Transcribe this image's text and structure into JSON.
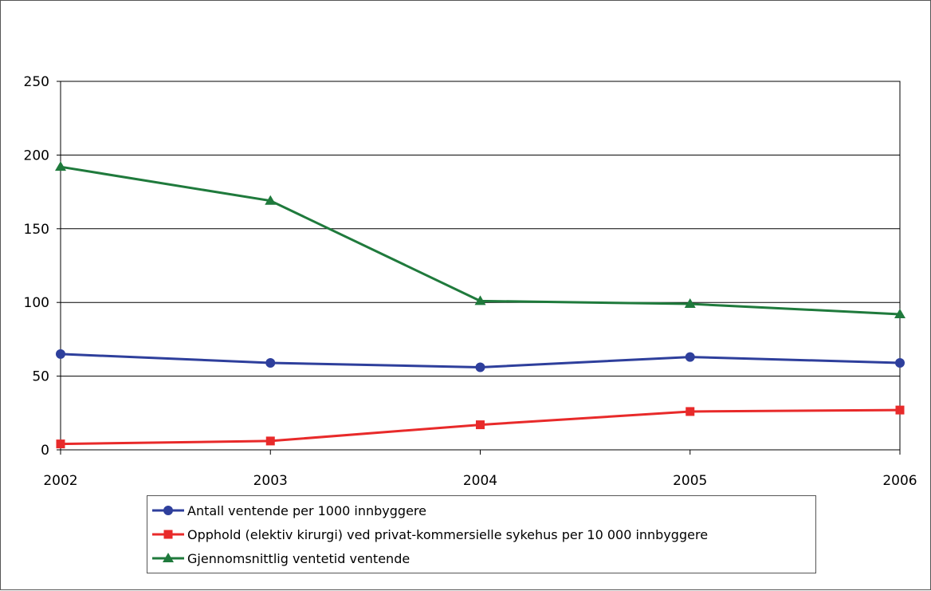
{
  "chart_data": {
    "type": "line",
    "x": [
      "2002",
      "2003",
      "2004",
      "2005",
      "2006"
    ],
    "ylim": [
      0,
      250
    ],
    "yticks": [
      "0",
      "50",
      "100",
      "150",
      "200",
      "250"
    ],
    "grid": true,
    "legend_position": "bottom",
    "series": [
      {
        "name": "Antall ventende per 1000  innbyggere",
        "values": [
          65,
          59,
          56,
          63,
          59
        ],
        "color": "#2e3f9c",
        "marker": "circle"
      },
      {
        "name": "Opphold (elektiv kirurgi) ved privat-kommersielle sykehus per 10 000 innbyggere",
        "values": [
          4,
          6,
          17,
          26,
          27
        ],
        "color": "#e82a2a",
        "marker": "square"
      },
      {
        "name": "Gjennomsnittlig ventetid ventende",
        "values": [
          192,
          169,
          101,
          99,
          92
        ],
        "color": "#1f7a3c",
        "marker": "triangle"
      }
    ]
  }
}
